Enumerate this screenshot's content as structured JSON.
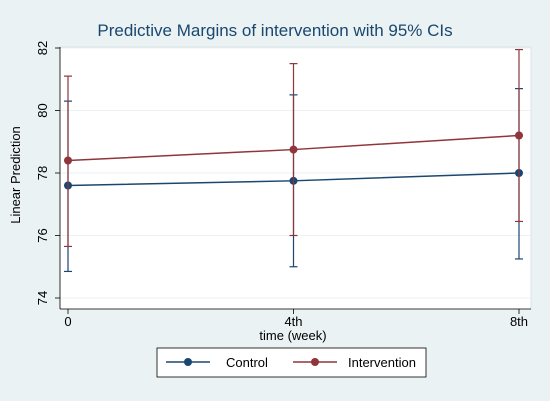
{
  "colors": {
    "outer_background": "#eaf2f3",
    "plot_background": "#ffffff",
    "gridline": "#eaf2f3",
    "title": "#1a476f",
    "control": "#1a476f",
    "intervention": "#90353b"
  },
  "chart_data": {
    "type": "line",
    "title": "Predictive Margins of intervention with 95% CIs",
    "xlabel": "time (week)",
    "ylabel": "Linear Prediction",
    "categories": [
      "0",
      "4th",
      "8th"
    ],
    "x": [
      0,
      4,
      8
    ],
    "xlim": [
      0,
      8
    ],
    "ylim": [
      74,
      82
    ],
    "yticks": [
      74,
      76,
      78,
      80,
      82
    ],
    "grid": true,
    "legend_position": "bottom",
    "series": [
      {
        "name": "Control",
        "values": [
          77.6,
          77.75,
          78.0
        ],
        "ci_low": [
          74.85,
          75.0,
          75.25
        ],
        "ci_high": [
          80.3,
          80.5,
          80.7
        ]
      },
      {
        "name": "Intervention",
        "values": [
          78.4,
          78.75,
          79.2
        ],
        "ci_low": [
          75.65,
          76.0,
          76.45
        ],
        "ci_high": [
          81.1,
          81.5,
          81.95
        ]
      }
    ]
  }
}
